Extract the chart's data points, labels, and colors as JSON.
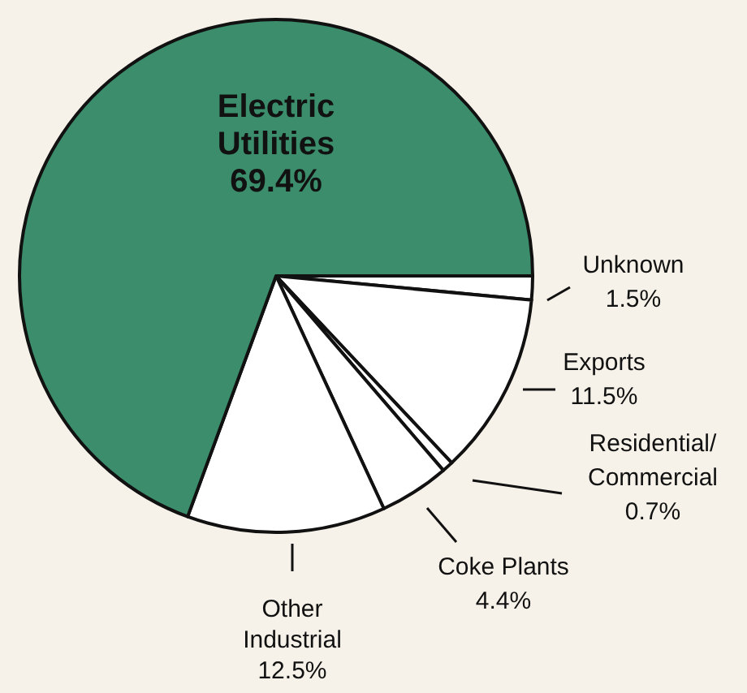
{
  "chart_data": {
    "type": "pie",
    "categories": [
      "Unknown",
      "Exports",
      "Residential/Commercial",
      "Coke Plants",
      "Other Industrial",
      "Electric Utilities"
    ],
    "values": [
      1.5,
      11.5,
      0.7,
      4.4,
      12.5,
      69.4
    ],
    "value_labels": [
      "1.5%",
      "11.5%",
      "0.7%",
      "4.4%",
      "12.5%",
      "69.4%"
    ],
    "colors": [
      "#ffffff",
      "#ffffff",
      "#ffffff",
      "#ffffff",
      "#ffffff",
      "#3b8d6c"
    ],
    "legend": false
  }
}
